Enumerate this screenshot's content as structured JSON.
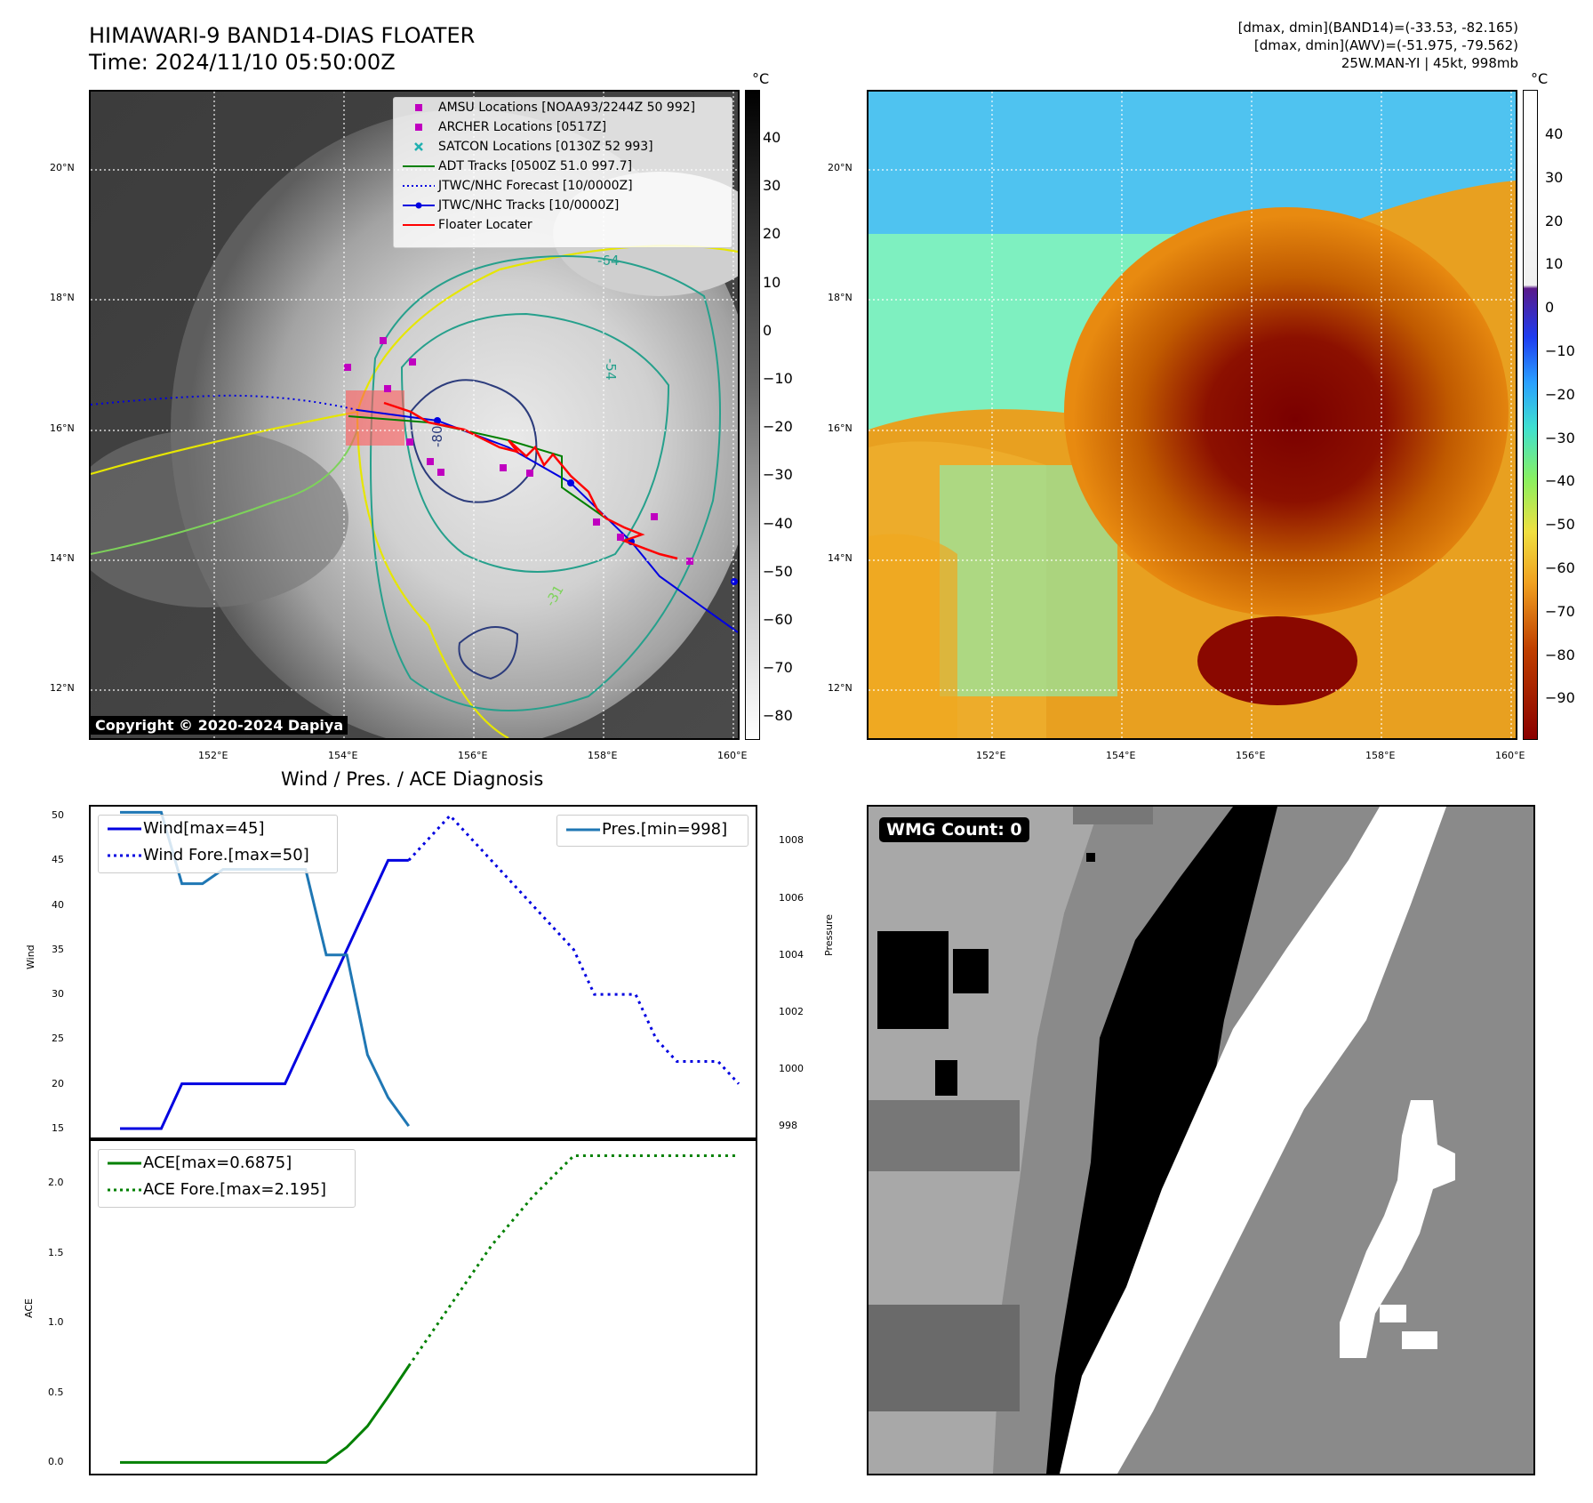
{
  "header": {
    "title_line1": "HIMAWARI-9 BAND14-DIAS FLOATER",
    "title_line2": "Time: 2024/11/10 05:50:00Z",
    "info_line1": "[dmax, dmin](BAND14)=(-33.53, -82.165)",
    "info_line2": "[dmax, dmin](AWV)=(-51.975, -79.562)",
    "info_line3": "25W.MAN-YI | 45kt, 998mb"
  },
  "map": {
    "lat_ticks": [
      "20°N",
      "18°N",
      "16°N",
      "14°N",
      "12°N"
    ],
    "lon_ticks": [
      "152°E",
      "154°E",
      "156°E",
      "158°E",
      "160°E"
    ],
    "copyright": "Copyright © 2020-2024 Dapiya",
    "contour_labels": [
      "-64",
      "-54",
      "-31",
      "-80"
    ],
    "legend": [
      {
        "label": "AMSU Locations [NOAA93/2244Z 50 992]",
        "color": "#c000c0",
        "marker": "square"
      },
      {
        "label": "ARCHER Locations [0517Z]",
        "color": "#c000c0",
        "marker": "square"
      },
      {
        "label": "SATCON Locations [0130Z 52 993]",
        "color": "#20b0b0",
        "marker": "x"
      },
      {
        "label": "ADT Tracks [0500Z 51.0 997.7]",
        "color": "#008000",
        "marker": "line"
      },
      {
        "label": "JTWC/NHC Forecast [10/0000Z]",
        "color": "#0000e0",
        "marker": "dotted"
      },
      {
        "label": "JTWC/NHC Tracks [10/0000Z]",
        "color": "#0000e0",
        "marker": "line-dot"
      },
      {
        "label": "Floater Locater",
        "color": "#ff0000",
        "marker": "line"
      }
    ]
  },
  "colorbar_ir": {
    "unit": "°C",
    "ticks": [
      "40",
      "30",
      "20",
      "10",
      "0",
      "−10",
      "−20",
      "−30",
      "−40",
      "−50",
      "−60",
      "−70",
      "−80"
    ]
  },
  "colorbar_wv": {
    "unit": "°C",
    "ticks": [
      "40",
      "30",
      "20",
      "10",
      "0",
      "−10",
      "−20",
      "−30",
      "−40",
      "−50",
      "−60",
      "−70",
      "−80",
      "−90"
    ]
  },
  "wmg": {
    "label": "WMG Count: 0"
  },
  "chart_data": [
    {
      "type": "line",
      "title": "Wind / Pres. / ACE Diagnosis",
      "ylabel": "Wind",
      "ylabel_right": "Pressure",
      "ylim": [
        14,
        51
      ],
      "ylim_right": [
        997.6,
        1009.2
      ],
      "yticks": [
        "50",
        "45",
        "40",
        "35",
        "30",
        "25",
        "20",
        "15"
      ],
      "yticks_right": [
        "1008",
        "1006",
        "1004",
        "1002",
        "1000",
        "998"
      ],
      "x": [
        0,
        1,
        2,
        3,
        4,
        5,
        6,
        7,
        8,
        9,
        10,
        11,
        12,
        13,
        14,
        15,
        16,
        17,
        18,
        19,
        20,
        21,
        22,
        23,
        24,
        25,
        26,
        27,
        28,
        29
      ],
      "series": [
        {
          "name": "Wind[max=45]",
          "color": "#0000e0",
          "style": "solid",
          "x": [
            0,
            2,
            3,
            8,
            13,
            14
          ],
          "values": [
            15,
            15,
            20,
            20,
            45,
            45
          ]
        },
        {
          "name": "Wind Fore.[max=50]",
          "color": "#0000e0",
          "style": "dotted",
          "x": [
            14,
            16,
            22,
            23,
            25,
            26,
            27,
            29,
            30
          ],
          "values": [
            45,
            50,
            35,
            30,
            30,
            25,
            22.5,
            22.5,
            20
          ]
        },
        {
          "name": "Pres.[min=998]",
          "color": "#1f77b4",
          "style": "solid",
          "axis": "right",
          "x": [
            0,
            2,
            3,
            4,
            5,
            9,
            10,
            11,
            12,
            13,
            14
          ],
          "values": [
            1009,
            1009,
            1006.5,
            1006.5,
            1007,
            1007,
            1004,
            1004,
            1000.5,
            999,
            998
          ]
        }
      ]
    },
    {
      "type": "line",
      "ylabel": "ACE",
      "ylim": [
        -0.08,
        2.3
      ],
      "yticks": [
        "2.0",
        "1.5",
        "1.0",
        "0.5",
        "0.0"
      ],
      "series": [
        {
          "name": "ACE[max=0.6875]",
          "color": "#008000",
          "style": "solid",
          "x": [
            0,
            10,
            11,
            12,
            13,
            14
          ],
          "values": [
            0,
            0,
            0.11,
            0.26,
            0.47,
            0.69
          ]
        },
        {
          "name": "ACE Fore.[max=2.195]",
          "color": "#008000",
          "style": "dotted",
          "x": [
            14,
            16,
            18,
            20,
            22,
            23,
            25,
            30
          ],
          "values": [
            0.69,
            1.12,
            1.55,
            1.9,
            2.195,
            2.195,
            2.195,
            2.195
          ]
        }
      ]
    }
  ]
}
